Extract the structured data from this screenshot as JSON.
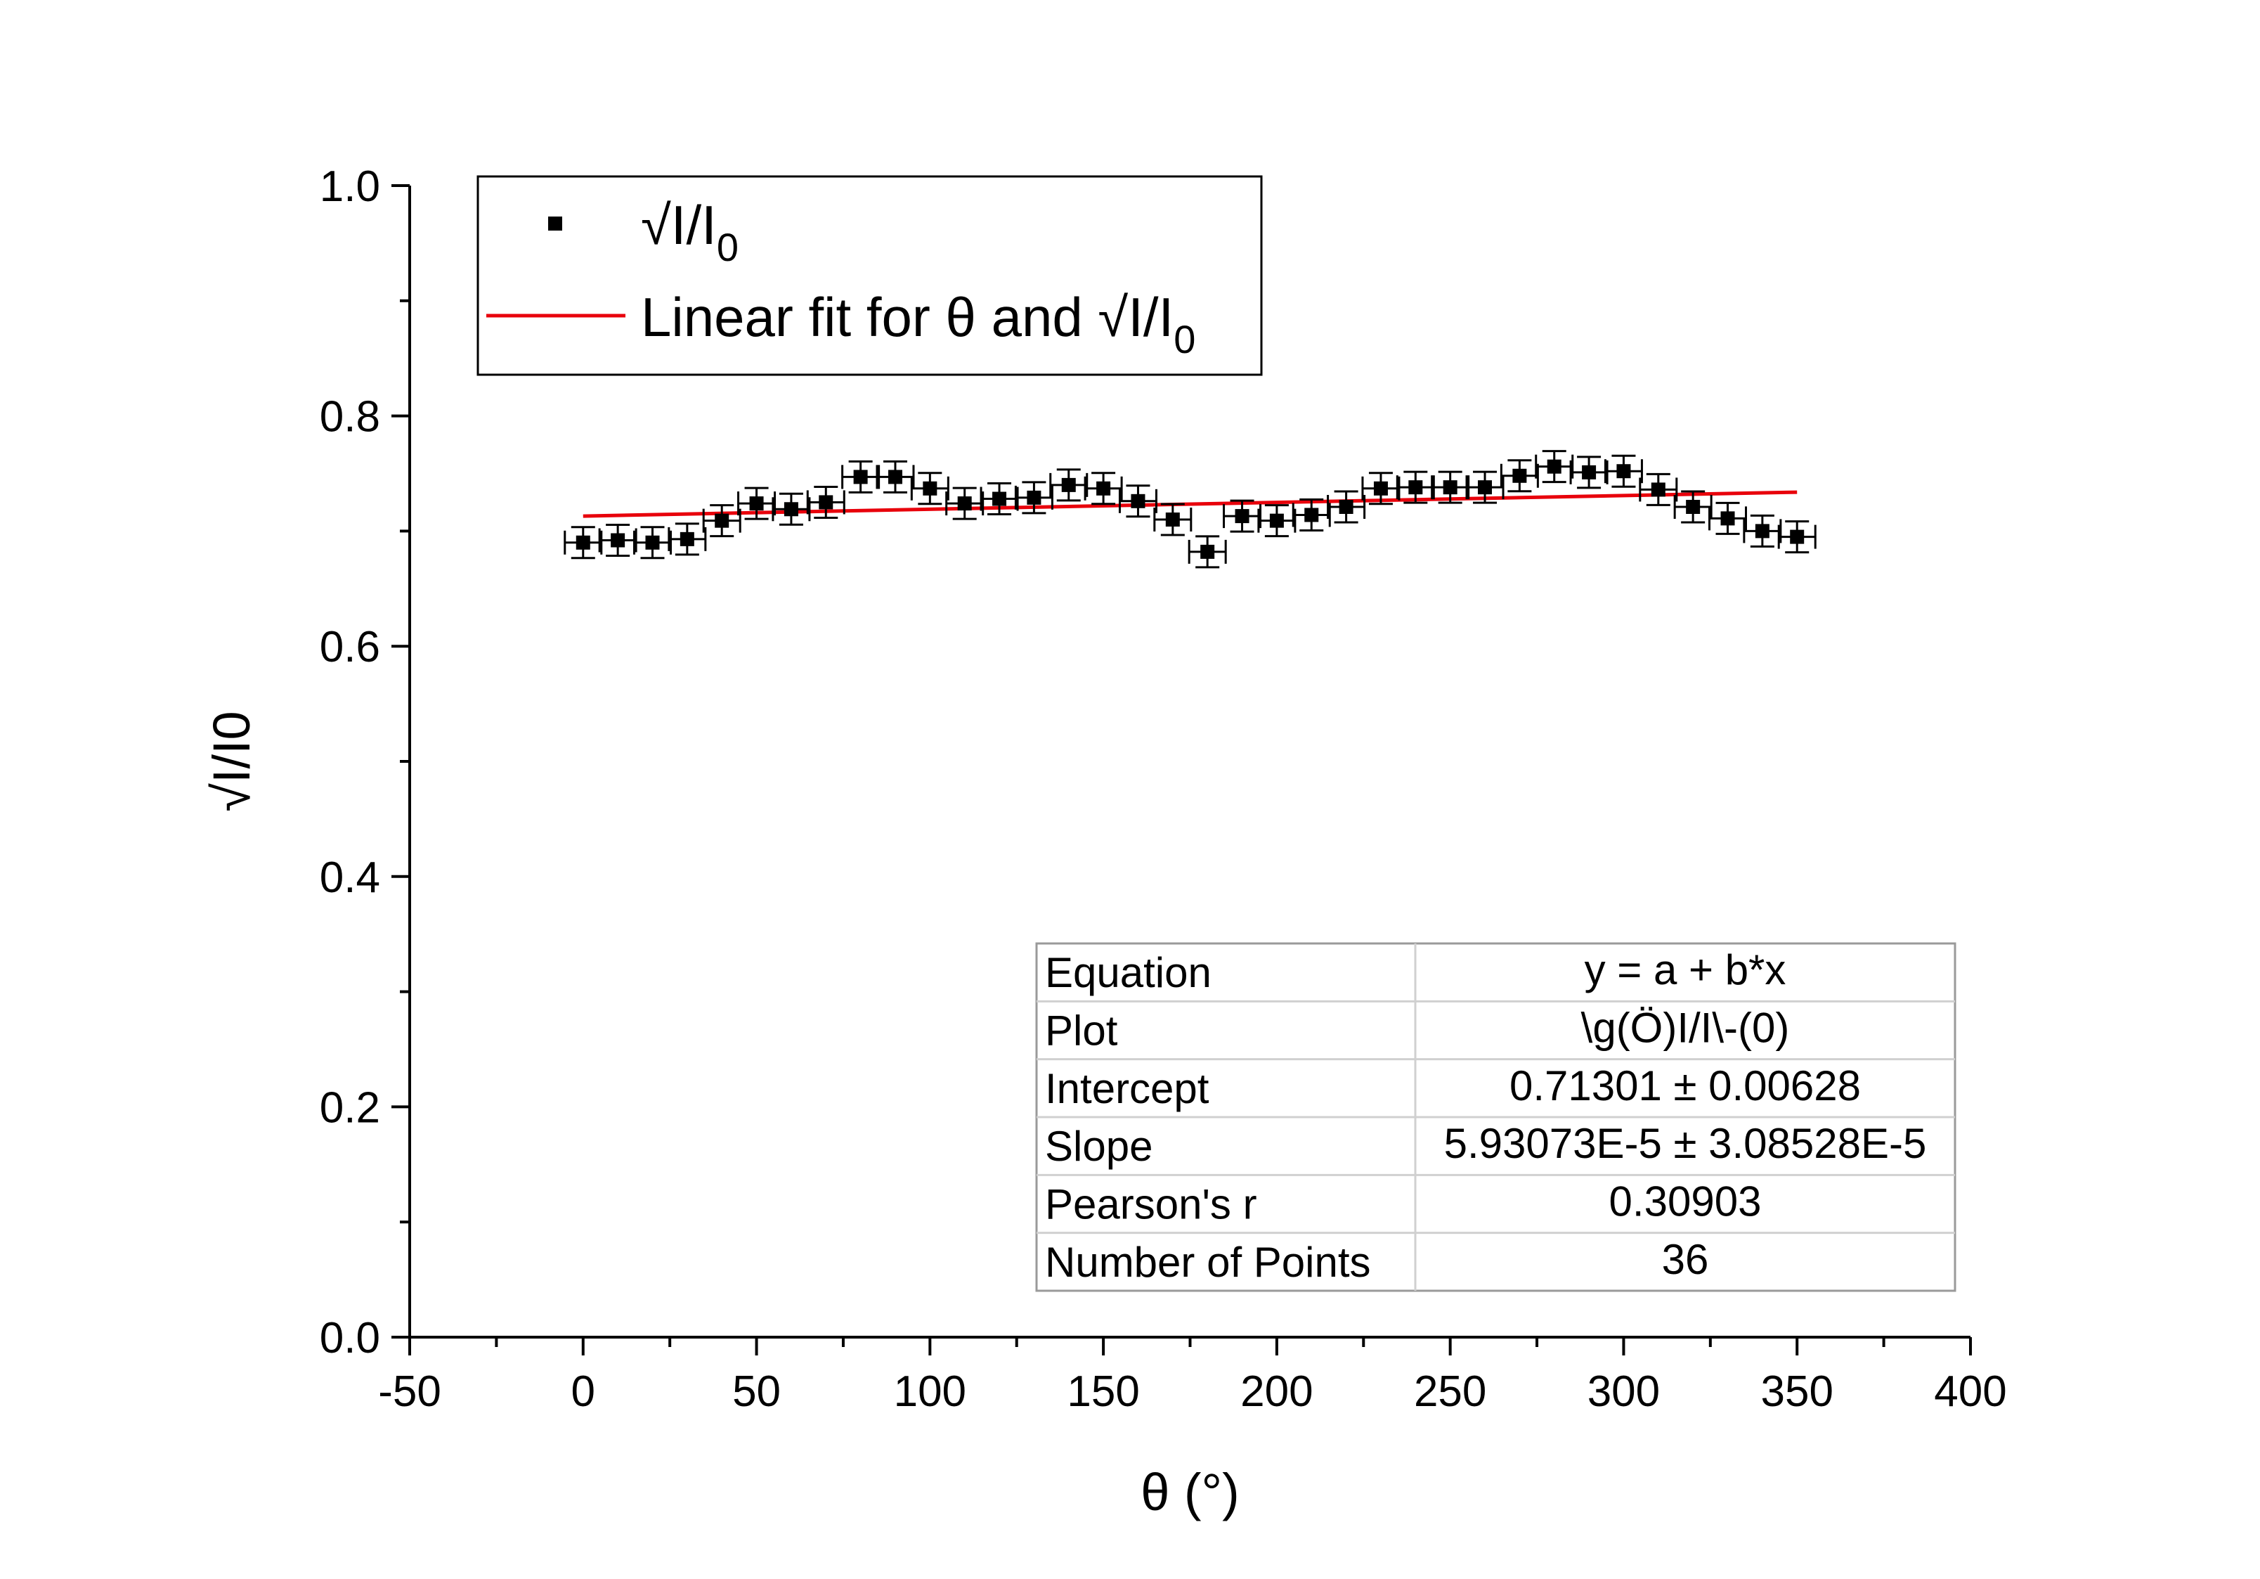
{
  "chart_data": {
    "type": "scatter",
    "xlabel": "θ (°)",
    "ylabel": "√I/I0",
    "xlim": [
      -50,
      400
    ],
    "ylim": [
      0.0,
      1.0
    ],
    "x_ticks": [
      "-50",
      "0",
      "50",
      "100",
      "150",
      "200",
      "250",
      "300",
      "350",
      "400"
    ],
    "y_ticks": [
      "0.0",
      "0.2",
      "0.4",
      "0.6",
      "0.8",
      "1.0"
    ],
    "series": [
      {
        "name": "√I/I0",
        "marker": "square",
        "color": "#000000",
        "error_bars": true,
        "x": [
          0,
          10,
          20,
          30,
          40,
          50,
          60,
          70,
          80,
          90,
          100,
          110,
          120,
          130,
          140,
          150,
          160,
          170,
          180,
          190,
          200,
          210,
          220,
          230,
          240,
          250,
          260,
          270,
          280,
          290,
          300,
          310,
          320,
          330,
          340,
          350
        ],
        "y": [
          0.69,
          0.692,
          0.69,
          0.693,
          0.709,
          0.724,
          0.719,
          0.725,
          0.747,
          0.747,
          0.737,
          0.724,
          0.728,
          0.729,
          0.74,
          0.737,
          0.726,
          0.71,
          0.682,
          0.713,
          0.709,
          0.714,
          0.721,
          0.737,
          0.738,
          0.738,
          0.738,
          0.748,
          0.756,
          0.751,
          0.752,
          0.736,
          0.721,
          0.711,
          0.7,
          0.695
        ]
      },
      {
        "name": "Linear fit for θ and √I/I0",
        "line": true,
        "color": "#e8000b",
        "x": [
          0,
          350
        ],
        "y": [
          0.71301,
          0.73377
        ]
      }
    ],
    "legend": {
      "placement": "top-left",
      "entries": [
        {
          "label_main": "√I/I",
          "label_sub": "0",
          "kind": "marker"
        },
        {
          "label_main": "Linear fit for θ and √I/I",
          "label_sub": "0",
          "kind": "line"
        }
      ]
    },
    "fit_table": {
      "placement": "bottom-right",
      "rows": [
        [
          "Equation",
          "y = a + b*x"
        ],
        [
          "Plot",
          "\\g(Ö)I/I\\-(0)"
        ],
        [
          "Intercept",
          "0.71301 ± 0.00628"
        ],
        [
          "Slope",
          "5.93073E-5 ± 3.08528E-5"
        ],
        [
          "Pearson's r",
          "0.30903"
        ],
        [
          "Number of Points",
          "36"
        ]
      ]
    }
  }
}
